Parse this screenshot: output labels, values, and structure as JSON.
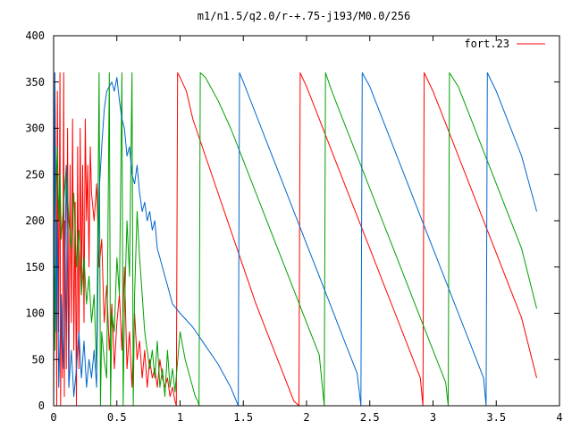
{
  "chart_data": {
    "type": "line",
    "title": "m1/n1.5/q2.0/r-+.75-j193/M0.0/256",
    "xlabel": "",
    "ylabel": "",
    "xlim": [
      0,
      4
    ],
    "ylim": [
      0,
      400
    ],
    "x_ticks": [
      0,
      0.5,
      1,
      1.5,
      2,
      2.5,
      3,
      3.5,
      4
    ],
    "x_tick_labels": [
      "0",
      "0.5",
      "1",
      "1.5",
      "2",
      "2.5",
      "3",
      "3.5",
      "4"
    ],
    "y_ticks": [
      0,
      50,
      100,
      150,
      200,
      250,
      300,
      350,
      400
    ],
    "y_tick_labels": [
      "0",
      "50",
      "100",
      "150",
      "200",
      "250",
      "300",
      "350",
      "400"
    ],
    "grid": false,
    "legend": {
      "position": "top-right",
      "entries": [
        {
          "label": "fort.23",
          "color": "#ff0000"
        }
      ]
    },
    "series": [
      {
        "color": "#ff0000",
        "x": [
          0.0,
          0.01,
          0.02,
          0.025,
          0.03,
          0.04,
          0.05,
          0.055,
          0.06,
          0.07,
          0.08,
          0.085,
          0.09,
          0.1,
          0.11,
          0.12,
          0.13,
          0.14,
          0.15,
          0.16,
          0.17,
          0.18,
          0.19,
          0.2,
          0.21,
          0.22,
          0.23,
          0.24,
          0.25,
          0.26,
          0.27,
          0.28,
          0.29,
          0.3,
          0.32,
          0.34,
          0.36,
          0.38,
          0.4,
          0.42,
          0.44,
          0.46,
          0.48,
          0.5,
          0.52,
          0.54,
          0.56,
          0.58,
          0.6,
          0.62,
          0.64,
          0.66,
          0.68,
          0.7,
          0.72,
          0.74,
          0.76,
          0.78,
          0.8,
          0.82,
          0.84,
          0.86,
          0.88,
          0.9,
          0.92,
          0.94,
          0.96,
          0.97,
          0.98,
          1.0,
          1.05,
          1.1,
          1.2,
          1.3,
          1.4,
          1.5,
          1.6,
          1.7,
          1.8,
          1.9,
          1.94,
          1.95,
          2.0,
          2.1,
          2.2,
          2.3,
          2.4,
          2.5,
          2.6,
          2.7,
          2.8,
          2.9,
          2.92,
          2.93,
          3.0,
          3.1,
          3.2,
          3.3,
          3.4,
          3.5,
          3.6,
          3.7,
          3.82
        ],
        "y": [
          0,
          360,
          200,
          0,
          340,
          80,
          360,
          0,
          120,
          30,
          360,
          10,
          200,
          40,
          300,
          20,
          260,
          90,
          310,
          60,
          220,
          0,
          280,
          40,
          300,
          120,
          260,
          90,
          310,
          200,
          260,
          150,
          280,
          230,
          200,
          240,
          150,
          180,
          90,
          130,
          60,
          110,
          40,
          90,
          120,
          60,
          150,
          40,
          80,
          20,
          100,
          50,
          70,
          30,
          60,
          20,
          50,
          30,
          40,
          20,
          50,
          30,
          20,
          30,
          10,
          20,
          5,
          0,
          360,
          355,
          340,
          310,
          270,
          230,
          190,
          150,
          110,
          75,
          40,
          5,
          0,
          360,
          345,
          310,
          275,
          240,
          205,
          170,
          135,
          100,
          65,
          30,
          0,
          360,
          340,
          305,
          270,
          235,
          200,
          165,
          130,
          95,
          30
        ]
      },
      {
        "color": "#00a000",
        "x": [
          0.0,
          0.01,
          0.02,
          0.03,
          0.04,
          0.05,
          0.06,
          0.08,
          0.1,
          0.12,
          0.14,
          0.16,
          0.18,
          0.2,
          0.22,
          0.24,
          0.26,
          0.28,
          0.3,
          0.32,
          0.34,
          0.36,
          0.37,
          0.38,
          0.4,
          0.42,
          0.44,
          0.45,
          0.46,
          0.48,
          0.5,
          0.52,
          0.54,
          0.55,
          0.56,
          0.58,
          0.6,
          0.62,
          0.63,
          0.64,
          0.66,
          0.68,
          0.7,
          0.72,
          0.74,
          0.76,
          0.78,
          0.8,
          0.82,
          0.84,
          0.86,
          0.88,
          0.9,
          0.92,
          0.94,
          0.96,
          1.0,
          1.04,
          1.08,
          1.12,
          1.14,
          1.15,
          1.16,
          1.2,
          1.3,
          1.4,
          1.5,
          1.6,
          1.7,
          1.8,
          1.9,
          2.0,
          2.1,
          2.14,
          2.15,
          2.2,
          2.3,
          2.4,
          2.5,
          2.6,
          2.7,
          2.8,
          2.9,
          3.0,
          3.1,
          3.12,
          3.13,
          3.2,
          3.3,
          3.4,
          3.5,
          3.6,
          3.7,
          3.82
        ],
        "y": [
          300,
          60,
          240,
          280,
          200,
          250,
          180,
          220,
          260,
          200,
          170,
          230,
          150,
          190,
          120,
          160,
          110,
          140,
          90,
          120,
          40,
          360,
          0,
          80,
          50,
          30,
          360,
          0,
          100,
          80,
          160,
          120,
          360,
          0,
          100,
          200,
          140,
          360,
          0,
          120,
          210,
          160,
          120,
          80,
          60,
          40,
          60,
          30,
          70,
          20,
          40,
          10,
          60,
          20,
          40,
          15,
          80,
          50,
          30,
          10,
          5,
          0,
          360,
          355,
          330,
          300,
          265,
          230,
          195,
          160,
          125,
          90,
          55,
          0,
          360,
          340,
          305,
          270,
          235,
          200,
          165,
          130,
          95,
          60,
          25,
          0,
          360,
          345,
          310,
          275,
          240,
          205,
          170,
          105
        ]
      },
      {
        "color": "#0066cc",
        "x": [
          0.0,
          0.01,
          0.02,
          0.03,
          0.04,
          0.06,
          0.08,
          0.1,
          0.12,
          0.14,
          0.16,
          0.18,
          0.2,
          0.22,
          0.24,
          0.26,
          0.28,
          0.3,
          0.32,
          0.34,
          0.36,
          0.38,
          0.4,
          0.42,
          0.44,
          0.46,
          0.48,
          0.5,
          0.52,
          0.54,
          0.56,
          0.58,
          0.6,
          0.62,
          0.64,
          0.66,
          0.68,
          0.7,
          0.72,
          0.74,
          0.76,
          0.78,
          0.8,
          0.82,
          0.84,
          0.86,
          0.88,
          0.9,
          0.92,
          0.94,
          1.0,
          1.1,
          1.2,
          1.3,
          1.4,
          1.46,
          1.47,
          1.5,
          1.6,
          1.7,
          1.8,
          1.9,
          2.0,
          2.1,
          2.2,
          2.3,
          2.4,
          2.43,
          2.44,
          2.5,
          2.6,
          2.7,
          2.8,
          2.9,
          3.0,
          3.1,
          3.2,
          3.3,
          3.4,
          3.42,
          3.43,
          3.5,
          3.6,
          3.7,
          3.82
        ],
        "y": [
          40,
          360,
          80,
          200,
          20,
          120,
          40,
          260,
          20,
          60,
          10,
          40,
          80,
          30,
          70,
          20,
          50,
          30,
          60,
          20,
          230,
          280,
          320,
          340,
          345,
          350,
          340,
          355,
          330,
          310,
          300,
          270,
          280,
          250,
          240,
          260,
          230,
          210,
          220,
          200,
          210,
          190,
          200,
          170,
          160,
          150,
          140,
          130,
          120,
          110,
          100,
          85,
          65,
          45,
          20,
          0,
          360,
          350,
          315,
          280,
          245,
          210,
          175,
          140,
          105,
          70,
          35,
          0,
          360,
          345,
          310,
          275,
          240,
          205,
          170,
          135,
          100,
          65,
          30,
          0,
          360,
          340,
          305,
          270,
          210
        ]
      }
    ]
  }
}
